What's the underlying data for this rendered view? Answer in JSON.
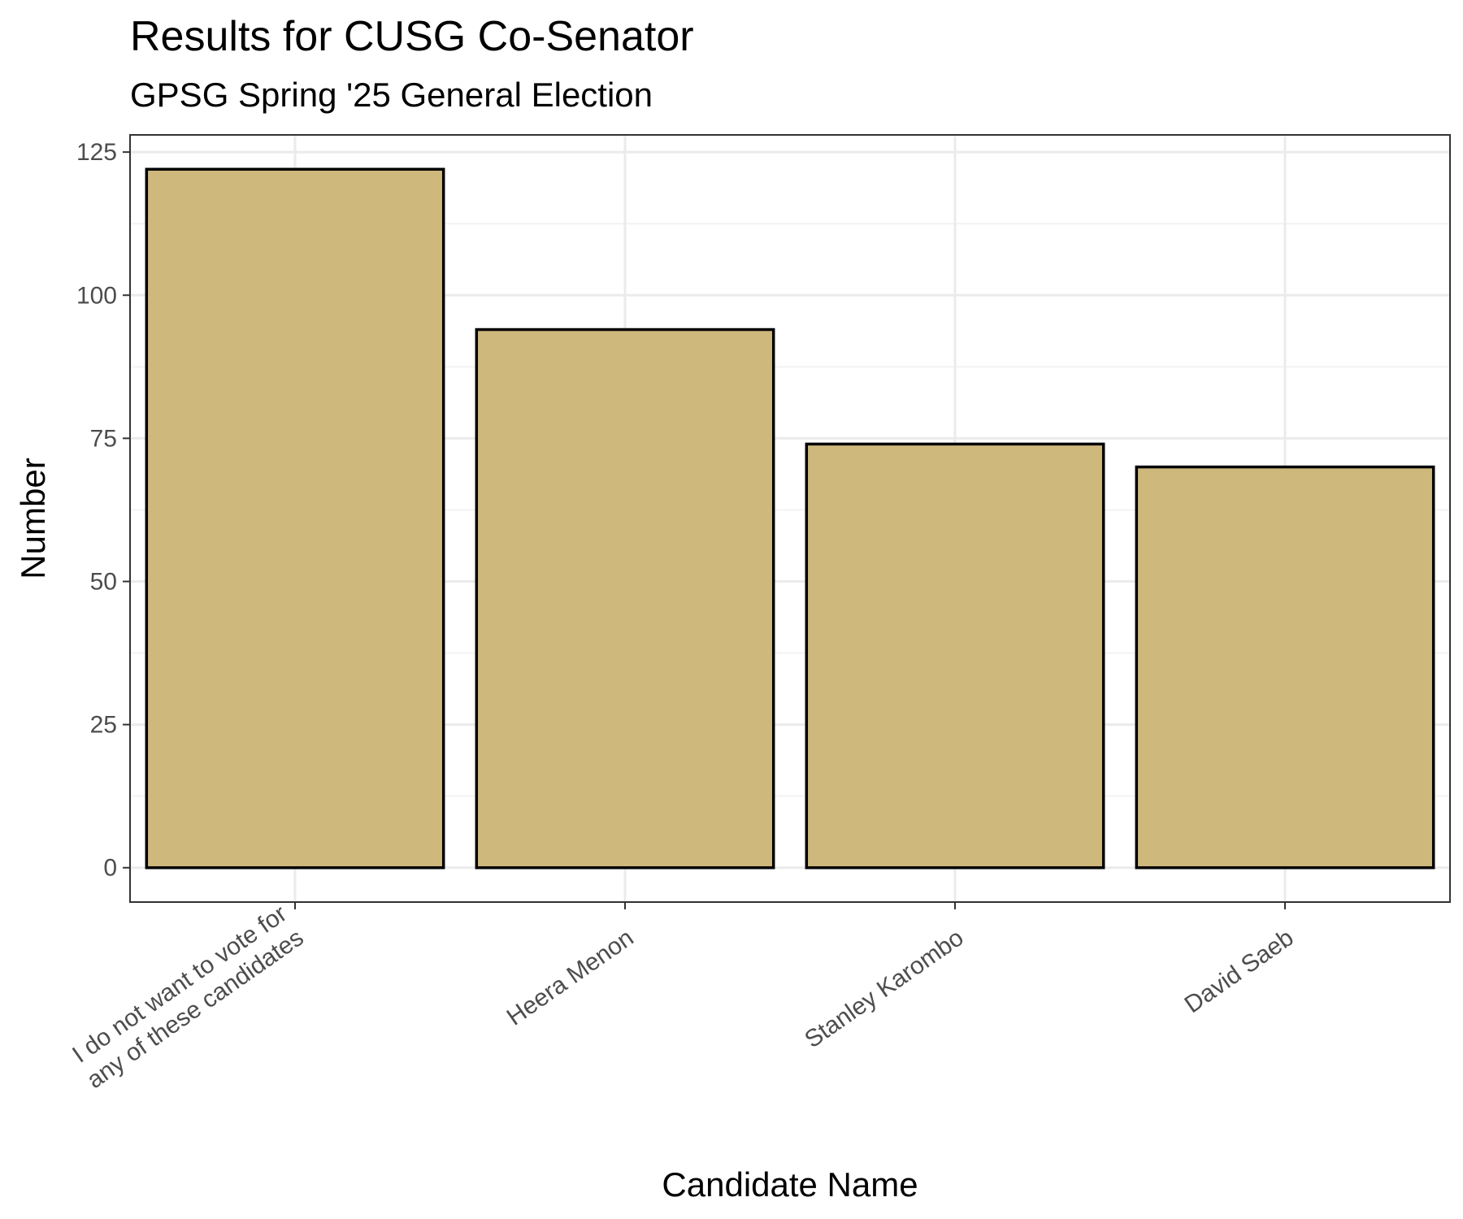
{
  "chart_data": {
    "type": "bar",
    "title": "Results for CUSG Co-Senator",
    "subtitle": "GPSG Spring '25 General Election",
    "xlabel": "Candidate Name",
    "ylabel": "Number",
    "categories": [
      [
        "I do not want to vote for",
        "any of these candidates"
      ],
      [
        "Heera Menon"
      ],
      [
        "Stanley Karombo"
      ],
      [
        "David Saeb"
      ]
    ],
    "values": [
      122,
      94,
      74,
      70
    ],
    "ylim": [
      -6,
      128
    ],
    "yticks": [
      0,
      25,
      50,
      75,
      100,
      125
    ],
    "ytick_labels": [
      "0",
      "25",
      "50",
      "75",
      "100",
      "125"
    ],
    "grid": true,
    "legend": "none",
    "colors": {
      "bar_fill": "#cfb87c",
      "bar_stroke": "#000000",
      "grid_major": "#ebebeb",
      "grid_minor": "#f3f3f3",
      "panel_border": "#333333",
      "tick_text": "#4d4d4d"
    }
  }
}
